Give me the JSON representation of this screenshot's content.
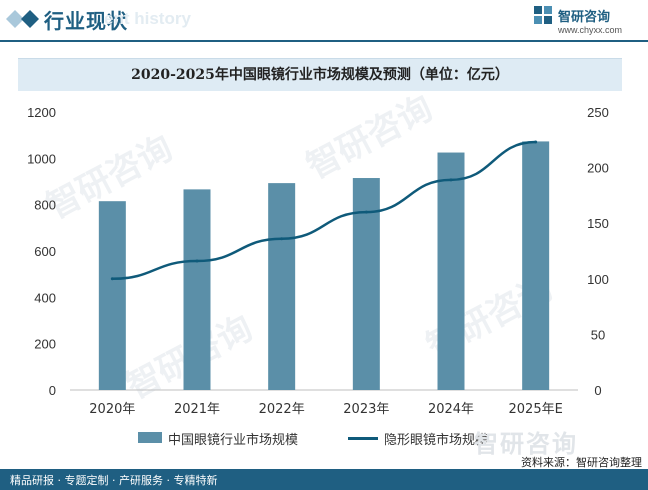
{
  "header": {
    "title": "行业现状",
    "ghost_text": "ent history",
    "brand_name": "智研咨询",
    "brand_url": "www.chyxx.com"
  },
  "chart_data": {
    "type": "bar",
    "title": "2020-2025年中国眼镜行业市场规模及预测（单位：亿元）",
    "categories": [
      "2020年",
      "2021年",
      "2022年",
      "2023年",
      "2024年",
      "2025年E"
    ],
    "series": [
      {
        "name": "中国眼镜行业市场规模",
        "type": "bar",
        "axis": "left",
        "values": [
          815,
          866,
          893,
          915,
          1025,
          1073
        ],
        "color": "#5b8fa8"
      },
      {
        "name": "隐形眼镜市场规模",
        "type": "line",
        "axis": "right",
        "values": [
          100,
          116,
          136,
          160,
          189,
          223
        ],
        "color": "#0f5a7a"
      }
    ],
    "y_left": {
      "min": 0,
      "max": 1200,
      "ticks": [
        0,
        200,
        400,
        600,
        800,
        1000,
        1200
      ]
    },
    "y_right": {
      "min": 0,
      "max": 250,
      "ticks": [
        0,
        50,
        100,
        150,
        200,
        250
      ]
    },
    "grid": false,
    "legend_position": "bottom"
  },
  "watermark": "智研咨询",
  "source": "资料来源：智研咨询整理",
  "footer": {
    "slogan": "精品研报 · 专题定制 · 产研服务 · 专精特新"
  }
}
